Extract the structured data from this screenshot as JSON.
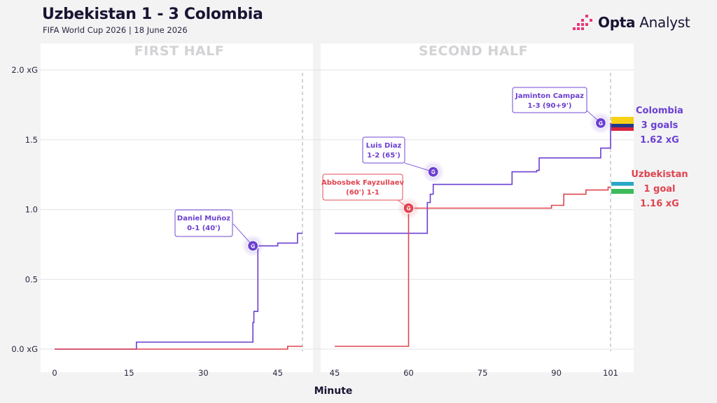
{
  "header": {
    "title": "Uzbekistan 1 - 3 Colombia",
    "subtitle": "FIFA World Cup 2026 | 18 June 2026",
    "brand_bold": "Opta",
    "brand_regular": "Analyst"
  },
  "colors": {
    "colombia": "#6b3fd1",
    "uzbekistan": "#e0444f",
    "panel": "#ffffff",
    "background": "#f3f3f4",
    "grid": "#e3e3e6",
    "brand_accent": "#e8357a"
  },
  "chart_data": {
    "type": "line",
    "step": true,
    "xlabel": "Minute",
    "ylabel": "",
    "ylim": [
      0,
      2.0
    ],
    "yticks": [
      "0.0 xG",
      "0.5",
      "1.0",
      "1.5",
      "2.0 xG"
    ],
    "grid": true,
    "panels": [
      {
        "title": "FIRST HALF",
        "xlim": [
          -5,
          50
        ],
        "xticks": [
          "0",
          "15",
          "30",
          "45"
        ],
        "end_marker": 50,
        "series": [
          {
            "name": "Colombia",
            "x": [
              0,
              16.5,
              31.5,
              40,
              40.2,
              41,
              45,
              49,
              50
            ],
            "y": [
              0.0,
              0.05,
              0.05,
              0.19,
              0.27,
              0.74,
              0.76,
              0.83,
              0.83
            ]
          },
          {
            "name": "Uzbekistan",
            "x": [
              0,
              47,
              50
            ],
            "y": [
              0.0,
              0.02,
              0.02
            ]
          }
        ],
        "goals": [
          {
            "team": "Colombia",
            "minute": 40,
            "xg": 0.74,
            "label_line1": "Daniel Muñoz",
            "label_line2": "0-1 (40')",
            "marker": "G"
          }
        ]
      },
      {
        "title": "SECOND HALF",
        "xlim": [
          45,
          101
        ],
        "xticks": [
          "45",
          "60",
          "75",
          "90",
          "101"
        ],
        "end_marker": 101,
        "series": [
          {
            "name": "Colombia",
            "x": [
              45,
              63.2,
              63.8,
              64.4,
              65,
              81,
              86,
              86.5,
              99,
              101
            ],
            "y": [
              0.83,
              0.83,
              1.05,
              1.11,
              1.18,
              1.27,
              1.28,
              1.37,
              1.44,
              1.62
            ],
            "final_y": 1.62
          },
          {
            "name": "Uzbekistan",
            "x": [
              45,
              59.9,
              60,
              87,
              89,
              91.5,
              96,
              100.5,
              101
            ],
            "y": [
              0.02,
              0.02,
              1.01,
              1.01,
              1.03,
              1.11,
              1.14,
              1.16,
              1.16
            ],
            "final_y": 1.16
          }
        ],
        "goals": [
          {
            "team": "Uzbekistan",
            "minute": 60,
            "xg": 1.01,
            "label_line1": "Abbosbek Fayzullaev",
            "label_line2": "(60') 1-1",
            "marker": "G"
          },
          {
            "team": "Colombia",
            "minute": 65,
            "xg": 1.27,
            "label_line1": "Luis Diaz",
            "label_line2": "1-2 (65')",
            "marker": "G"
          },
          {
            "team": "Colombia",
            "minute": 99,
            "xg": 1.62,
            "label_line1": "Jaminton Campaz",
            "label_line2": "1-3 (90+9')",
            "marker": "G"
          }
        ]
      }
    ],
    "summary": [
      {
        "team": "Colombia",
        "line1": "Colombia",
        "line2": "3 goals",
        "line3": "1.62 xG",
        "flag": "colombia-flag"
      },
      {
        "team": "Uzbekistan",
        "line1": "Uzbekistan",
        "line2": "1 goal",
        "line3": "1.16 xG",
        "flag": "uzbekistan-flag"
      }
    ]
  }
}
